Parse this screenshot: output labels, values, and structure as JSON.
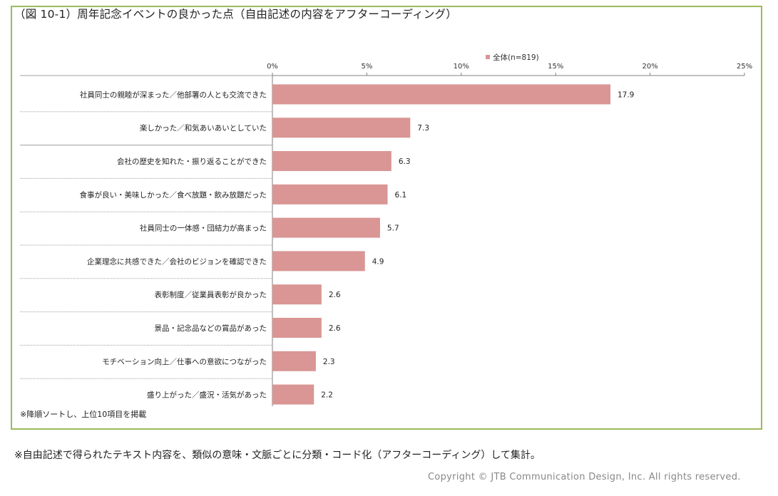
{
  "title": "（図 10-1）周年記念イベントの良かった点（自由記述の内容をアフターコーディング）",
  "footnote": "※降順ソートし、上位10項目を掲載",
  "bottom_note": "※自由記述で得られたテキスト内容を、類似の意味・文脈ごとに分類・コード化（アフターコーディング）して集計。",
  "copyright": "Copyright © JTB Communication Design, Inc. All rights reserved.",
  "colors": {
    "bar": "#d99694",
    "frame": "#9bbb59",
    "axis": "#808080",
    "separator": "#a0a0a0"
  },
  "chart_data": {
    "type": "bar",
    "orientation": "horizontal",
    "categories": [
      "社員同士の親睦が深まった／他部署の人とも交流できた",
      "楽しかった／和気あいあいとしていた",
      "会社の歴史を知れた・振り返ることができた",
      "食事が良い・美味しかった／食べ放題・飲み放題だった",
      "社員同士の一体感・団結力が高まった",
      "企業理念に共感できた／会社のビジョンを確認できた",
      "表彰制度／従業員表彰が良かった",
      "景品・記念品などの賞品があった",
      "モチベーション向上／仕事への意欲につながった",
      "盛り上がった／盛況・活気があった"
    ],
    "series": [
      {
        "name": "全体(n=819)",
        "values": [
          17.9,
          7.3,
          6.3,
          6.1,
          5.7,
          4.9,
          2.6,
          2.6,
          2.3,
          2.2
        ]
      }
    ],
    "value_labels": [
      "17.9",
      "7.3",
      "6.3",
      "6.1",
      "5.7",
      "4.9",
      "2.6",
      "2.6",
      "2.3",
      "2.2"
    ],
    "xlim": [
      0,
      25
    ],
    "x_ticks": [
      0,
      5,
      10,
      15,
      20,
      25
    ],
    "x_tick_labels": [
      "0%",
      "5%",
      "10%",
      "15%",
      "20%",
      "25%"
    ],
    "axis_position": "top",
    "grid": false,
    "legend_position": "top"
  }
}
